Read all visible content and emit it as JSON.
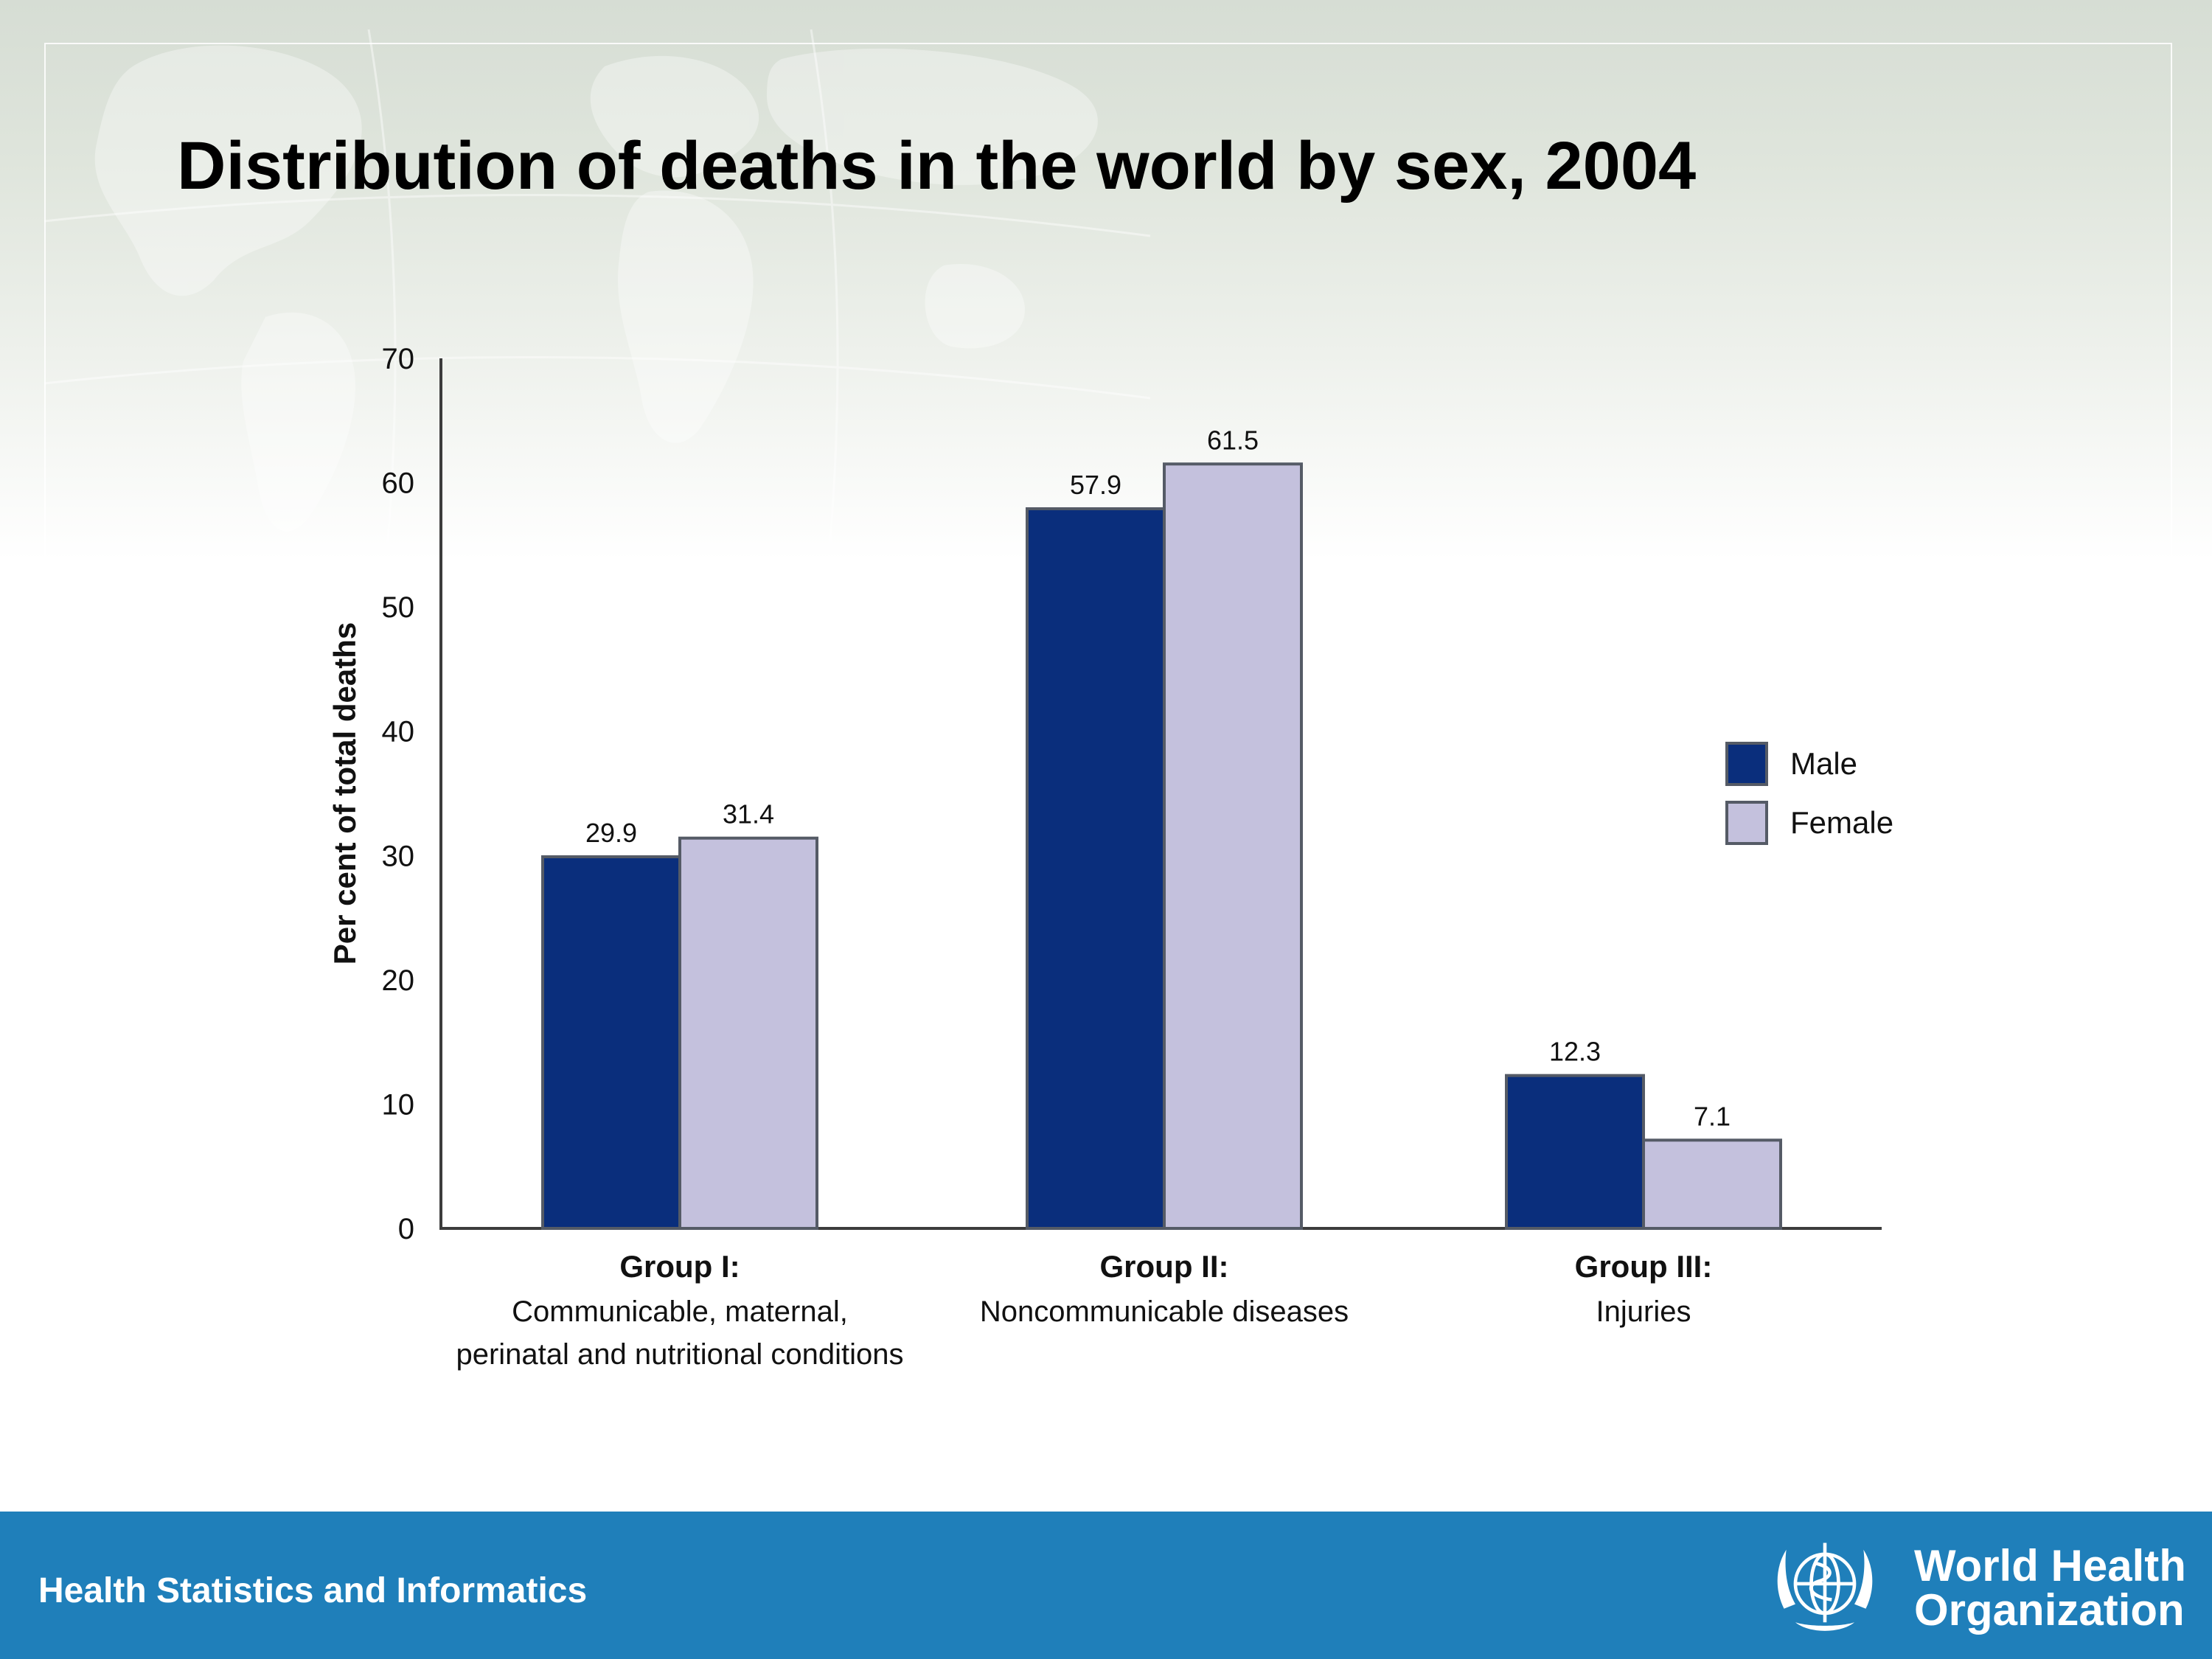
{
  "slide": {
    "title": "Distribution of deaths in the world by sex, 2004",
    "footer_left": "Health Statistics and Informatics",
    "footer_logo": {
      "line1": "World Health",
      "line2": "Organization",
      "icon": "who-emblem-icon"
    },
    "colors": {
      "footer": "#1f7fba",
      "male": "#0a2e7c",
      "female": "#c4c1dd"
    }
  },
  "chart_data": {
    "type": "bar",
    "title": "",
    "ylabel": "Per cent of total deaths",
    "xlabel": "",
    "ylim": [
      0,
      70
    ],
    "yticks": [
      0,
      10,
      20,
      30,
      40,
      50,
      60,
      70
    ],
    "categories": [
      {
        "head": "Group I:",
        "sub": [
          "Communicable, maternal,",
          "perinatal and nutritional conditions"
        ]
      },
      {
        "head": "Group II:",
        "sub": [
          "Noncommunicable diseases"
        ]
      },
      {
        "head": "Group III:",
        "sub": [
          "Injuries"
        ]
      }
    ],
    "series": [
      {
        "name": "Male",
        "color": "#0a2e7c",
        "values": [
          29.9,
          57.9,
          12.3
        ],
        "labels": [
          "29.9",
          "57.9",
          "12.3"
        ]
      },
      {
        "name": "Female",
        "color": "#c4c1dd",
        "values": [
          31.4,
          61.5,
          7.1
        ],
        "labels": [
          "31.4",
          "61.5",
          "7.1"
        ]
      }
    ],
    "legend": "right",
    "grid": false
  }
}
